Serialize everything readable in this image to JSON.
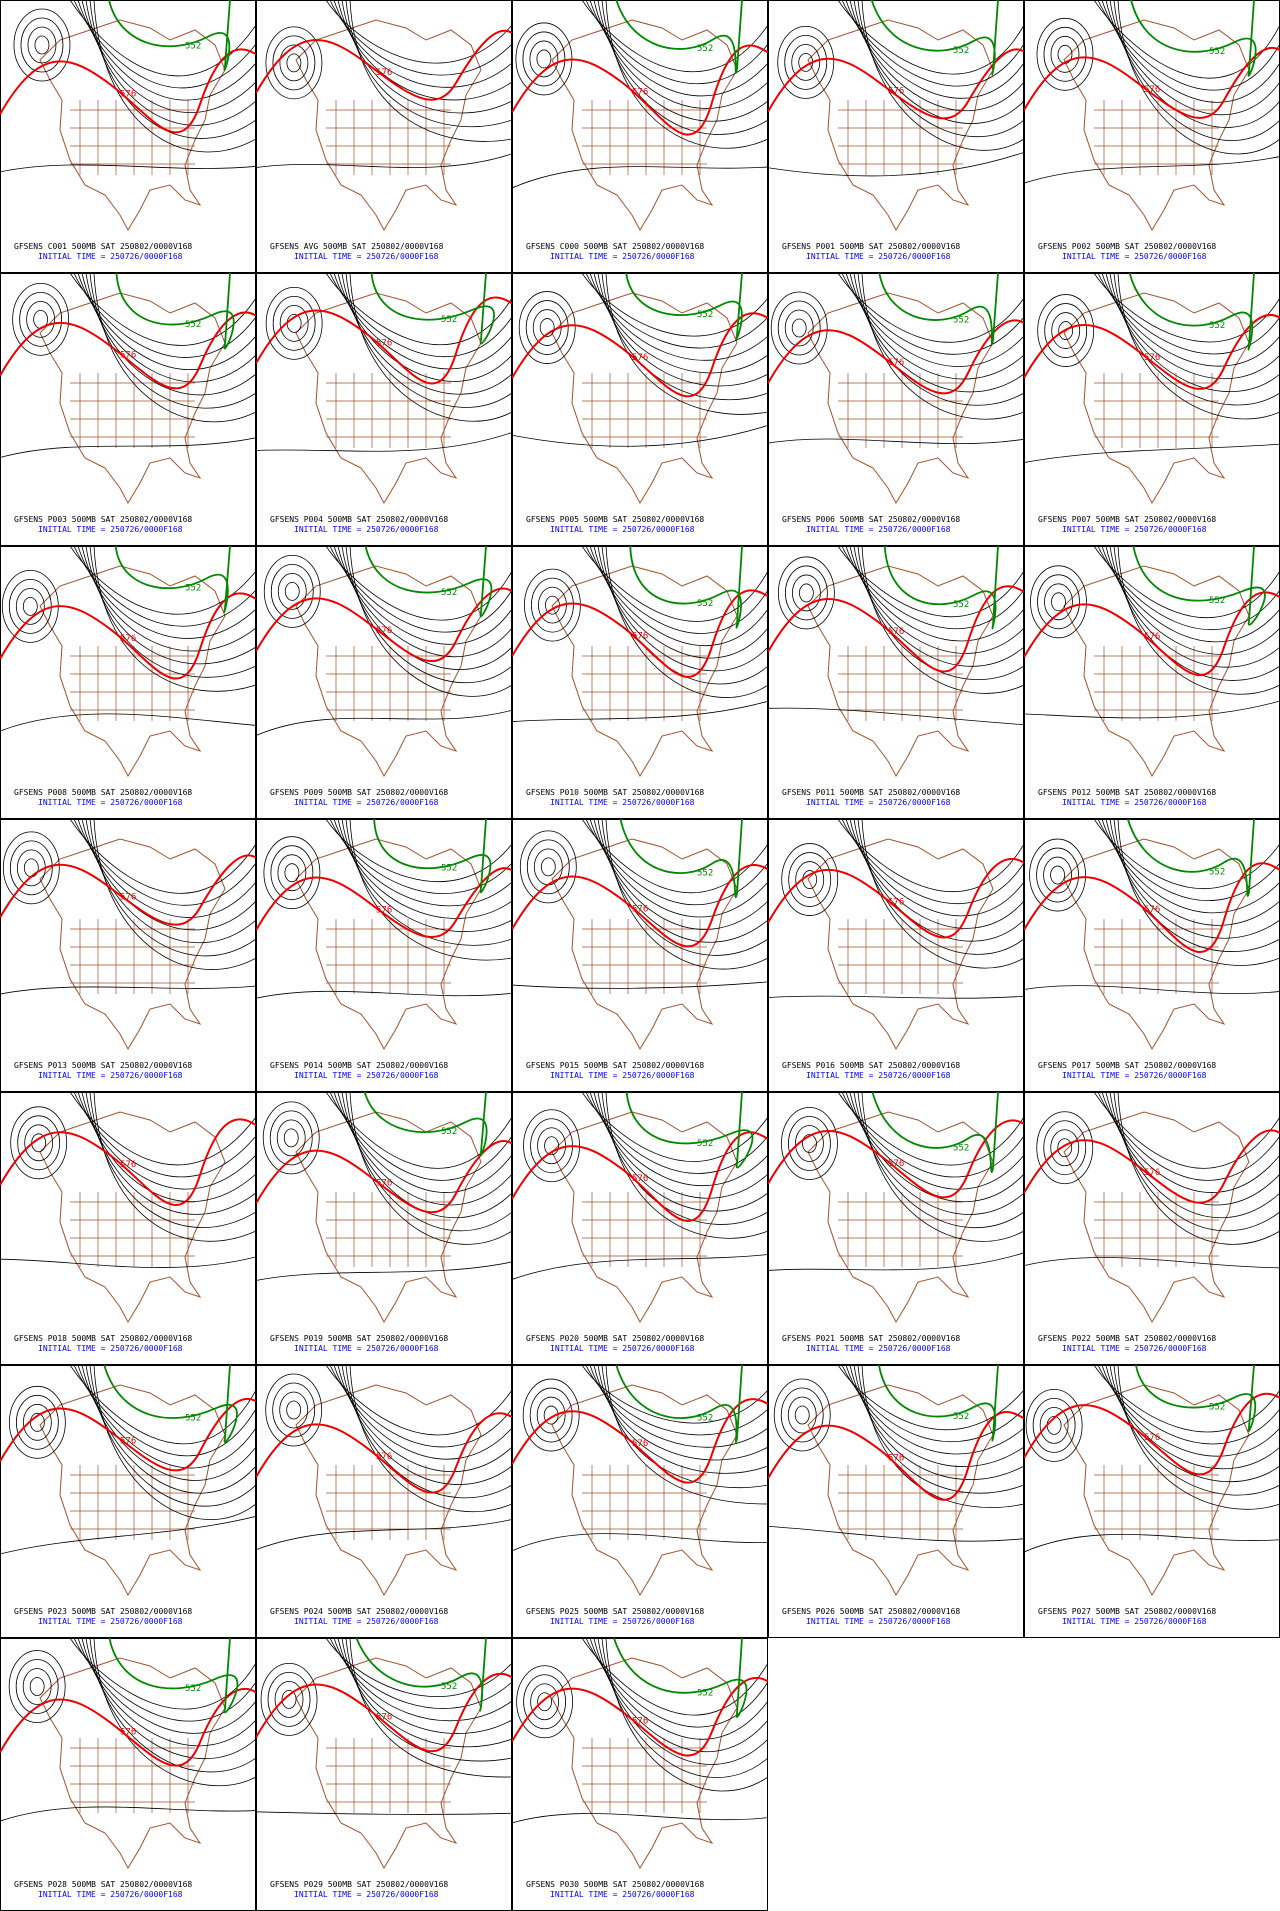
{
  "panels": [
    {
      "title": "GFSENS C001 500MB SAT 250802/0000V168",
      "initial_time": "INITIAL TIME = 250726/0000F168",
      "labels": [
        "576",
        "552"
      ]
    },
    {
      "title": "GFSENS AVG 500MB SAT 250802/0000V168",
      "initial_time": "INITIAL TIME = 250726/0000F168",
      "labels": [
        "576"
      ]
    },
    {
      "title": "GFSENS C000 500MB SAT 250802/0000V168",
      "initial_time": "INITIAL TIME = 250726/0000F168",
      "labels": [
        "576",
        "552"
      ]
    },
    {
      "title": "GFSENS P001 500MB SAT 250802/0000V168",
      "initial_time": "INITIAL TIME = 250726/0000F168",
      "labels": [
        "576",
        "552"
      ]
    },
    {
      "title": "GFSENS P002 500MB SAT 250802/0000V168",
      "initial_time": "INITIAL TIME = 250726/0000F168",
      "labels": [
        "576",
        "552"
      ]
    },
    {
      "title": "GFSENS P003 500MB SAT 250802/0000V168",
      "initial_time": "INITIAL TIME = 250726/0000F168",
      "labels": [
        "576",
        "552"
      ]
    },
    {
      "title": "GFSENS P004 500MB SAT 250802/0000V168",
      "initial_time": "INITIAL TIME = 250726/0000F168",
      "labels": [
        "576",
        "552"
      ]
    },
    {
      "title": "GFSENS P005 500MB SAT 250802/0000V168",
      "initial_time": "INITIAL TIME = 250726/0000F168",
      "labels": [
        "576",
        "552"
      ]
    },
    {
      "title": "GFSENS P006 500MB SAT 250802/0000V168",
      "initial_time": "INITIAL TIME = 250726/0000F168",
      "labels": [
        "576",
        "552"
      ]
    },
    {
      "title": "GFSENS P007 500MB SAT 250802/0000V168",
      "initial_time": "INITIAL TIME = 250726/0000F168",
      "labels": [
        "576",
        "552"
      ]
    },
    {
      "title": "GFSENS P008 500MB SAT 250802/0000V168",
      "initial_time": "INITIAL TIME = 250726/0000F168",
      "labels": [
        "576",
        "552"
      ]
    },
    {
      "title": "GFSENS P009 500MB SAT 250802/0000V168",
      "initial_time": "INITIAL TIME = 250726/0000F168",
      "labels": [
        "576",
        "552"
      ]
    },
    {
      "title": "GFSENS P010 500MB SAT 250802/0000V168",
      "initial_time": "INITIAL TIME = 250726/0000F168",
      "labels": [
        "576",
        "552"
      ]
    },
    {
      "title": "GFSENS P011 500MB SAT 250802/0000V168",
      "initial_time": "INITIAL TIME = 250726/0000F168",
      "labels": [
        "576",
        "552"
      ]
    },
    {
      "title": "GFSENS P012 500MB SAT 250802/0000V168",
      "initial_time": "INITIAL TIME = 250726/0000F168",
      "labels": [
        "576",
        "552"
      ]
    },
    {
      "title": "GFSENS P013 500MB SAT 250802/0000V168",
      "initial_time": "INITIAL TIME = 250726/0000F168",
      "labels": [
        "576"
      ]
    },
    {
      "title": "GFSENS P014 500MB SAT 250802/0000V168",
      "initial_time": "INITIAL TIME = 250726/0000F168",
      "labels": [
        "576",
        "552"
      ]
    },
    {
      "title": "GFSENS P015 500MB SAT 250802/0000V168",
      "initial_time": "INITIAL TIME = 250726/0000F168",
      "labels": [
        "576",
        "552"
      ]
    },
    {
      "title": "GFSENS P016 500MB SAT 250802/0000V168",
      "initial_time": "INITIAL TIME = 250726/0000F168",
      "labels": [
        "576"
      ]
    },
    {
      "title": "GFSENS P017 500MB SAT 250802/0000V168",
      "initial_time": "INITIAL TIME = 250726/0000F168",
      "labels": [
        "576",
        "552"
      ]
    },
    {
      "title": "GFSENS P018 500MB SAT 250802/0000V168",
      "initial_time": "INITIAL TIME = 250726/0000F168",
      "labels": [
        "576"
      ]
    },
    {
      "title": "GFSENS P019 500MB SAT 250802/0000V168",
      "initial_time": "INITIAL TIME = 250726/0000F168",
      "labels": [
        "576",
        "552"
      ]
    },
    {
      "title": "GFSENS P020 500MB SAT 250802/0000V168",
      "initial_time": "INITIAL TIME = 250726/0000F168",
      "labels": [
        "576",
        "552"
      ]
    },
    {
      "title": "GFSENS P021 500MB SAT 250802/0000V168",
      "initial_time": "INITIAL TIME = 250726/0000F168",
      "labels": [
        "576",
        "552"
      ]
    },
    {
      "title": "GFSENS P022 500MB SAT 250802/0000V168",
      "initial_time": "INITIAL TIME = 250726/0000F168",
      "labels": [
        "576"
      ]
    },
    {
      "title": "GFSENS P023 500MB SAT 250802/0000V168",
      "initial_time": "INITIAL TIME = 250726/0000F168",
      "labels": [
        "576",
        "552"
      ]
    },
    {
      "title": "GFSENS P024 500MB SAT 250802/0000V168",
      "initial_time": "INITIAL TIME = 250726/0000F168",
      "labels": [
        "576"
      ]
    },
    {
      "title": "GFSENS P025 500MB SAT 250802/0000V168",
      "initial_time": "INITIAL TIME = 250726/0000F168",
      "labels": [
        "576",
        "552"
      ]
    },
    {
      "title": "GFSENS P026 500MB SAT 250802/0000V168",
      "initial_time": "INITIAL TIME = 250726/0000F168",
      "labels": [
        "576",
        "552"
      ]
    },
    {
      "title": "GFSENS P027 500MB SAT 250802/0000V168",
      "initial_time": "INITIAL TIME = 250726/0000F168",
      "labels": [
        "576",
        "552"
      ]
    },
    {
      "title": "GFSENS P028 500MB SAT 250802/0000V168",
      "initial_time": "INITIAL TIME = 250726/0000F168",
      "labels": [
        "576",
        "552"
      ]
    },
    {
      "title": "GFSENS P029 500MB SAT 250802/0000V168",
      "initial_time": "INITIAL TIME = 250726/0000F168",
      "labels": [
        "576",
        "552"
      ]
    },
    {
      "title": "GFSENS P030 500MB SAT 250802/0000V168",
      "initial_time": "INITIAL TIME = 250726/0000F168",
      "labels": [
        "576",
        "552"
      ]
    }
  ]
}
